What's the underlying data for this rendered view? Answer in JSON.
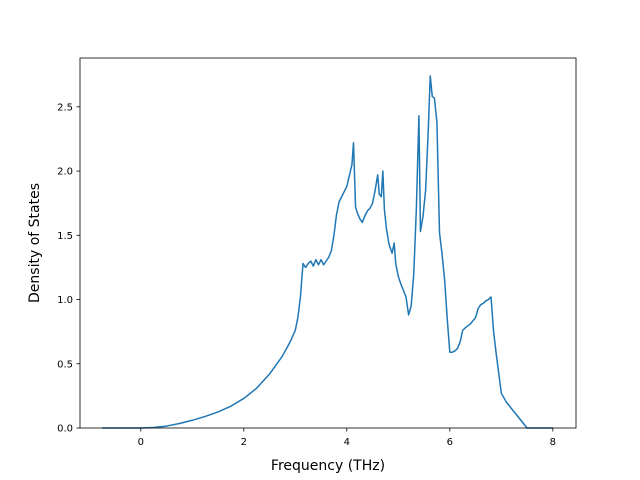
{
  "chart_data": {
    "type": "line",
    "title": "",
    "xlabel": "Frequency (THz)",
    "ylabel": "Density of States",
    "xlim": [
      -1.18,
      8.45
    ],
    "ylim": [
      0.0,
      2.88
    ],
    "xticks": [
      0,
      2,
      4,
      6,
      8
    ],
    "xtick_labels": [
      "0",
      "2",
      "4",
      "6",
      "8"
    ],
    "yticks": [
      0.0,
      0.5,
      1.0,
      1.5,
      2.0,
      2.5
    ],
    "ytick_labels": [
      "0.0",
      "0.5",
      "1.0",
      "1.5",
      "2.0",
      "2.5"
    ],
    "grid": false,
    "line_color": "#1f77b4",
    "series": [
      {
        "x": [
          -0.75,
          -0.5,
          -0.25,
          0.0,
          0.25,
          0.5,
          0.75,
          1.0,
          1.25,
          1.5,
          1.75,
          2.0,
          2.25,
          2.5,
          2.75,
          2.9,
          3.0,
          3.05,
          3.1,
          3.15,
          3.2,
          3.25,
          3.3,
          3.35,
          3.4,
          3.45,
          3.5,
          3.55,
          3.6,
          3.65,
          3.7,
          3.75,
          3.8,
          3.85,
          3.9,
          4.0,
          4.1,
          4.13,
          4.17,
          4.2,
          4.25,
          4.3,
          4.35,
          4.4,
          4.45,
          4.5,
          4.55,
          4.6,
          4.63,
          4.67,
          4.7,
          4.73,
          4.77,
          4.82,
          4.88,
          4.92,
          4.95,
          5.0,
          5.05,
          5.1,
          5.15,
          5.2,
          5.25,
          5.3,
          5.35,
          5.4,
          5.43,
          5.48,
          5.53,
          5.58,
          5.62,
          5.66,
          5.7,
          5.75,
          5.8,
          5.85,
          5.9,
          5.95,
          6.0,
          6.05,
          6.1,
          6.15,
          6.2,
          6.25,
          6.3,
          6.4,
          6.5,
          6.55,
          6.6,
          6.65,
          6.7,
          6.75,
          6.8,
          6.85,
          6.9,
          7.0,
          7.1,
          7.2,
          7.3,
          7.5,
          8.0
        ],
        "y": [
          0.0,
          0.0,
          0.0,
          0.0,
          0.004,
          0.015,
          0.035,
          0.06,
          0.09,
          0.125,
          0.17,
          0.23,
          0.31,
          0.42,
          0.56,
          0.67,
          0.76,
          0.86,
          1.02,
          1.28,
          1.25,
          1.28,
          1.3,
          1.26,
          1.31,
          1.27,
          1.31,
          1.27,
          1.3,
          1.33,
          1.38,
          1.5,
          1.66,
          1.76,
          1.8,
          1.88,
          2.05,
          2.22,
          1.72,
          1.68,
          1.63,
          1.6,
          1.65,
          1.69,
          1.71,
          1.75,
          1.85,
          1.97,
          1.82,
          1.8,
          2.0,
          1.7,
          1.55,
          1.43,
          1.36,
          1.44,
          1.28,
          1.18,
          1.12,
          1.07,
          1.02,
          0.88,
          0.95,
          1.2,
          1.7,
          2.43,
          1.53,
          1.65,
          1.85,
          2.3,
          2.74,
          2.58,
          2.57,
          2.38,
          1.52,
          1.35,
          1.15,
          0.85,
          0.59,
          0.59,
          0.6,
          0.62,
          0.67,
          0.76,
          0.78,
          0.81,
          0.86,
          0.93,
          0.96,
          0.97,
          0.99,
          1.0,
          1.02,
          0.75,
          0.58,
          0.27,
          0.2,
          0.15,
          0.1,
          0.0,
          0.0
        ]
      }
    ]
  }
}
